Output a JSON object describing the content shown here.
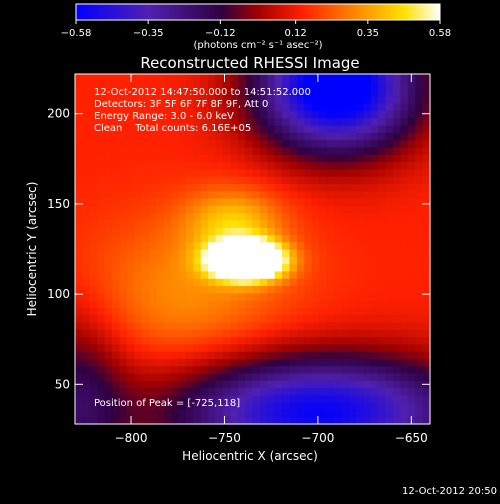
{
  "figure_title": "Reconstructed RHESSI Image",
  "footer_timestamp": "12-Oct-2012 20:50",
  "colorbar": {
    "ticks": [
      -0.58,
      -0.35,
      -0.12,
      0.12,
      0.35,
      0.58
    ],
    "tick_labels": [
      "−0.58",
      "−0.35",
      "−0.12",
      "0.12",
      "0.35",
      "0.58"
    ],
    "unit_label": "(photons cm⁻² s⁻¹ asec⁻²)",
    "range": [
      -0.58,
      0.58
    ]
  },
  "annotations": {
    "time_range": "12-Oct-2012 14:47:50.000 to 14:51:52.000",
    "detectors": "Detectors: 3F 5F 6F 7F 8F 9F, Att 0",
    "energy_range": "Energy Range: 3.0 - 6.0 keV",
    "algorithm_counts": "Clean    Total counts: 6.16E+05",
    "peak_position": "Position of Peak = [-725,118]"
  },
  "chart_data": {
    "type": "heatmap",
    "title": "Reconstructed RHESSI Image",
    "xlabel": "Heliocentric X (arcsec)",
    "ylabel": "Heliocentric Y (arcsec)",
    "xlim": [
      -830,
      -640
    ],
    "ylim": [
      28,
      222
    ],
    "xticks": [
      -800,
      -750,
      -700,
      -650
    ],
    "xtick_labels": [
      "−800",
      "−750",
      "−700",
      "−650"
    ],
    "yticks": [
      50,
      100,
      150,
      200
    ],
    "ytick_labels": [
      "50",
      "100",
      "150",
      "200"
    ],
    "value_range": [
      -0.58,
      0.58
    ],
    "colormap": [
      "#0000ff",
      "#5020a0",
      "#400050",
      "#ff0000",
      "#ff8000",
      "#ffff00",
      "#ffffff"
    ],
    "peak": {
      "x": -725,
      "y": 118
    },
    "components": [
      {
        "x": -738,
        "y": 119,
        "sx": 13,
        "sy": 7,
        "amp": 1.12
      },
      {
        "x": -745,
        "y": 140,
        "sx": 18,
        "sy": 13,
        "amp": 0.25
      },
      {
        "x": -770,
        "y": 100,
        "sx": 40,
        "sy": 30,
        "amp": 0.18
      }
    ],
    "background": 0.14,
    "voids": [
      {
        "x": -690,
        "y": 215,
        "sx": 30,
        "sy": 25,
        "amp": -0.85
      },
      {
        "x": -700,
        "y": 35,
        "sx": 55,
        "sy": 22,
        "amp": -0.7
      },
      {
        "x": -830,
        "y": 40,
        "sx": 20,
        "sy": 35,
        "amp": -0.3
      }
    ]
  }
}
